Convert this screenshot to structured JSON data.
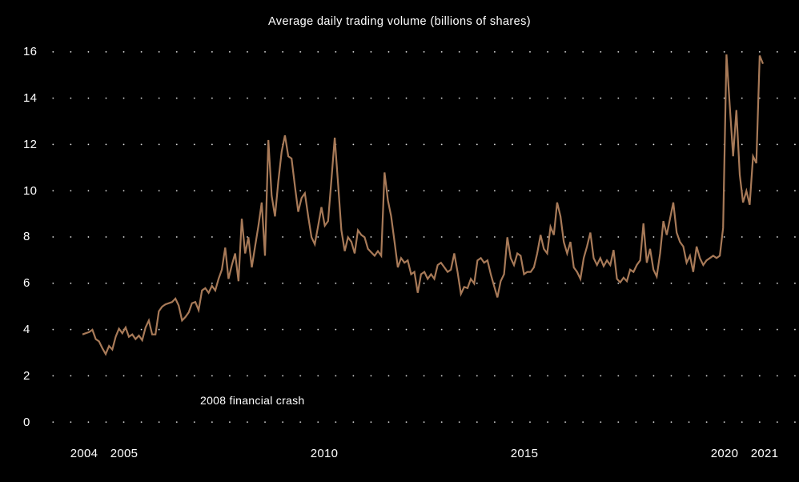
{
  "page": {
    "background": "#000000",
    "text_color": "#ffffff"
  },
  "chart_data": {
    "type": "line",
    "title": "Average daily trading volume (billions of shares)",
    "annotation": "2008 financial crash",
    "series_name": "Average daily trading volume",
    "unit": "billions of shares",
    "frequency": "monthly",
    "start": "2004-01",
    "end": "2021-02",
    "line_color": "#a87a58",
    "grid": "dotted",
    "legend": "none",
    "xlabel": "",
    "ylabel": "",
    "ylim": [
      0,
      16
    ],
    "y_ticks": [
      0,
      2,
      4,
      6,
      8,
      10,
      12,
      14,
      16
    ],
    "x_ticks": [
      2004,
      2005,
      2010,
      2015,
      2020,
      2021
    ],
    "values": [
      3.8,
      3.85,
      3.9,
      4.0,
      3.6,
      3.5,
      3.2,
      2.95,
      3.3,
      3.15,
      3.7,
      4.05,
      3.85,
      4.1,
      3.7,
      3.8,
      3.6,
      3.75,
      3.55,
      4.1,
      4.4,
      3.8,
      3.8,
      4.8,
      5.0,
      5.1,
      5.15,
      5.2,
      5.35,
      5.05,
      4.4,
      4.55,
      4.75,
      5.15,
      5.2,
      4.85,
      5.7,
      5.8,
      5.6,
      5.9,
      5.7,
      6.2,
      6.6,
      7.55,
      6.2,
      6.8,
      7.3,
      6.1,
      8.8,
      7.3,
      8.0,
      6.7,
      7.6,
      8.5,
      9.5,
      7.2,
      12.2,
      9.8,
      8.9,
      10.4,
      11.7,
      12.4,
      11.5,
      11.4,
      10.2,
      9.1,
      9.7,
      9.9,
      8.9,
      8.0,
      7.7,
      8.5,
      9.3,
      8.5,
      8.7,
      10.5,
      12.3,
      10.3,
      8.3,
      7.4,
      8.0,
      7.8,
      7.3,
      8.3,
      8.1,
      8.0,
      7.5,
      7.35,
      7.2,
      7.4,
      7.2,
      10.8,
      9.6,
      8.9,
      7.8,
      6.7,
      7.1,
      6.9,
      7.0,
      6.4,
      6.5,
      5.6,
      6.4,
      6.5,
      6.2,
      6.4,
      6.2,
      6.8,
      6.9,
      6.7,
      6.5,
      6.6,
      7.3,
      6.5,
      5.55,
      5.85,
      5.8,
      6.2,
      6.0,
      7.0,
      7.1,
      6.9,
      7.0,
      6.4,
      5.9,
      5.4,
      6.1,
      6.4,
      8.0,
      7.1,
      6.8,
      7.3,
      7.2,
      6.4,
      6.5,
      6.5,
      6.7,
      7.3,
      8.1,
      7.5,
      7.3,
      8.45,
      8.1,
      9.5,
      8.9,
      7.8,
      7.3,
      7.8,
      6.7,
      6.5,
      6.2,
      7.1,
      7.6,
      8.2,
      7.1,
      6.8,
      7.1,
      6.75,
      7.0,
      6.8,
      7.45,
      6.2,
      6.05,
      6.25,
      6.1,
      6.6,
      6.5,
      6.8,
      7.0,
      8.6,
      6.9,
      7.5,
      6.6,
      6.3,
      7.3,
      8.7,
      8.1,
      8.8,
      9.5,
      8.2,
      7.8,
      7.6,
      6.9,
      7.2,
      6.5,
      7.6,
      7.1,
      6.8,
      7.0,
      7.1,
      7.2,
      7.1,
      7.2,
      8.4,
      15.9,
      13.7,
      11.5,
      13.5,
      10.7,
      9.5,
      10.0,
      9.4,
      11.5,
      11.2,
      15.85,
      15.5
    ]
  }
}
